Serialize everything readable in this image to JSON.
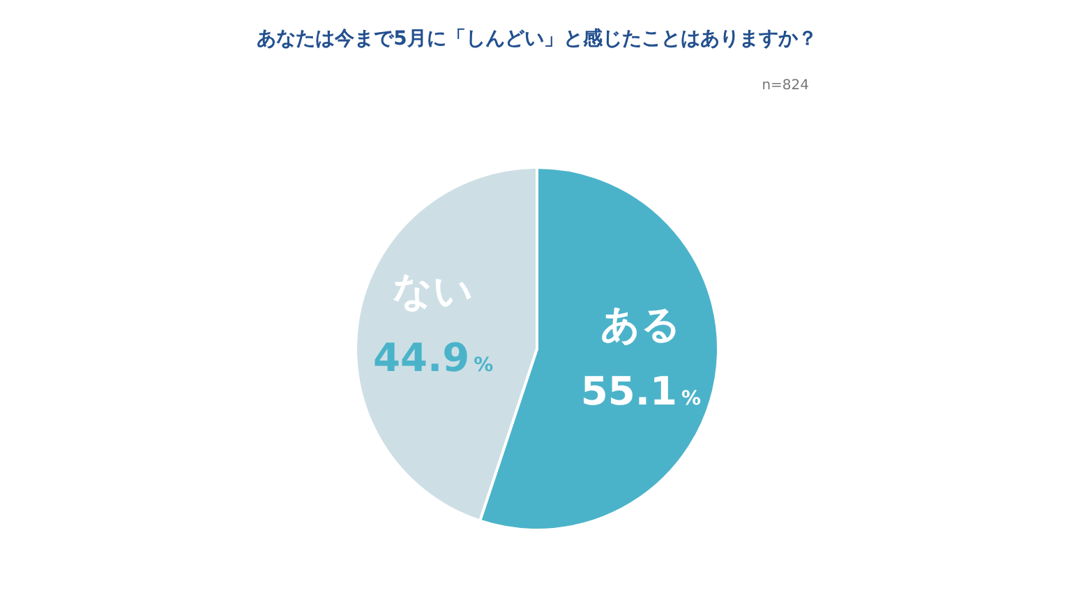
{
  "chart_data": {
    "type": "pie",
    "title": "あなたは今まで5月に「しんどい」と感じたことはありますか？",
    "categories": [
      "ある",
      "ない"
    ],
    "values": [
      55.1,
      44.9
    ],
    "colors": [
      "#4bb3c9",
      "#cddfe5"
    ],
    "value_labels": [
      "55.1%",
      "44.9%"
    ],
    "annotations": [
      "n=824"
    ]
  }
}
